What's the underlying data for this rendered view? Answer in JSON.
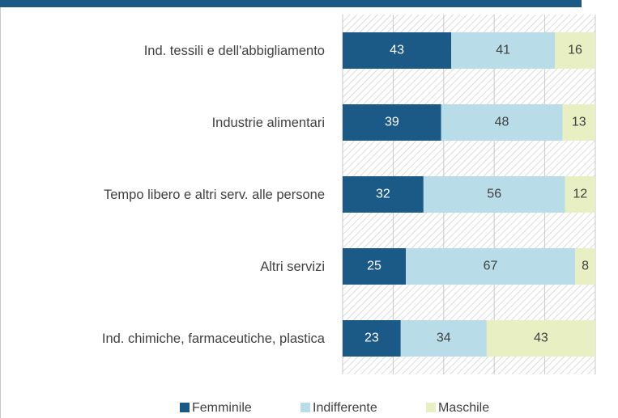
{
  "chart_data": {
    "type": "stacked-bar-horizontal",
    "categories": [
      "Ind. tessili e dell'abbigliamento",
      "Industrie alimentari",
      "Tempo libero e altri serv. alle persone",
      "Altri servizi",
      "Ind. chimiche, farmaceutiche, plastica"
    ],
    "series": [
      {
        "name": "Femminile",
        "color": "#1b5a86",
        "values": [
          43,
          39,
          32,
          25,
          23
        ]
      },
      {
        "name": "Indifferente",
        "color": "#b8dde8",
        "values": [
          41,
          48,
          56,
          67,
          34
        ]
      },
      {
        "name": "Maschile",
        "color": "#e7efc3",
        "values": [
          16,
          13,
          12,
          8,
          43
        ]
      }
    ],
    "xlim": [
      0,
      100
    ],
    "xticks": [
      0,
      20,
      40,
      60,
      80,
      100
    ],
    "grid": true,
    "legend": "bottom"
  }
}
